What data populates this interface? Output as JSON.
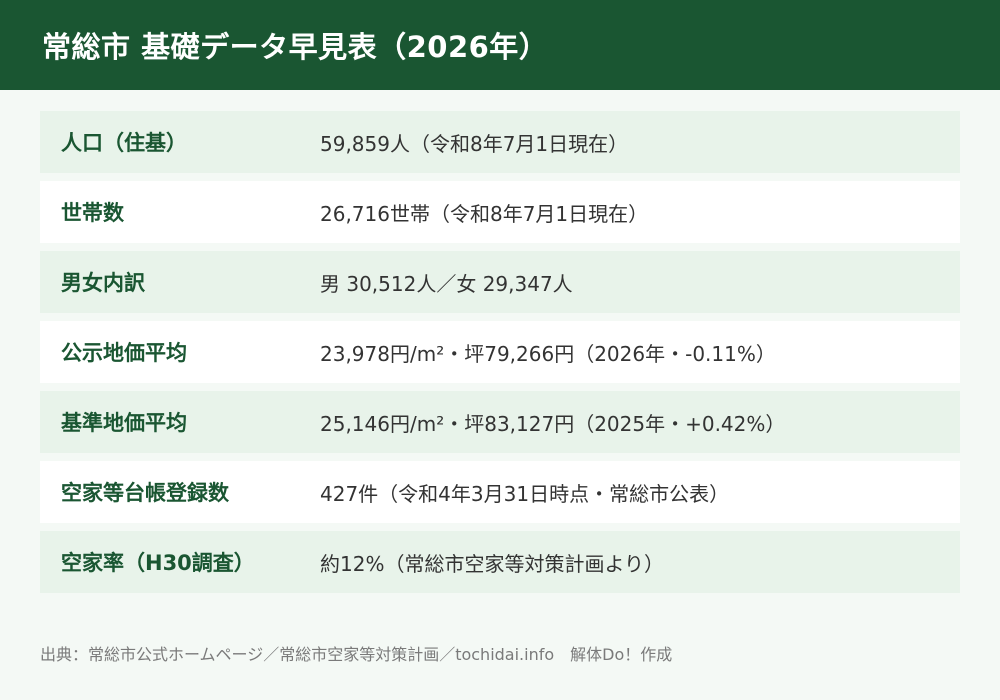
{
  "header": {
    "title": "常総市 基礎データ早見表（2026年）"
  },
  "rows": [
    {
      "label": "人口（住基）",
      "value": "59,859人（令和8年7月1日現在）"
    },
    {
      "label": "世帯数",
      "value": "26,716世帯（令和8年7月1日現在）"
    },
    {
      "label": "男女内訳",
      "value": "男 30,512人／女 29,347人"
    },
    {
      "label": "公示地価平均",
      "value": "23,978円/m²・坪79,266円（2026年・-0.11%）"
    },
    {
      "label": "基準地価平均",
      "value": "25,146円/m²・坪83,127円（2025年・+0.42%）"
    },
    {
      "label": "空家等台帳登録数",
      "value": "427件（令和4年3月31日時点・常総市公表）"
    },
    {
      "label": "空家率（H30調査）",
      "value": "約12%（常総市空家等対策計画より）"
    }
  ],
  "footer": {
    "source": "出典：常総市公式ホームページ／常総市空家等対策計画／tochidai.info　解体Do！作成"
  },
  "colors": {
    "header_bg": "#1a5632",
    "label_text": "#1a5632",
    "row_shaded": "#e8f3ea",
    "row_plain": "#ffffff",
    "page_bg": "#f4f9f5"
  }
}
